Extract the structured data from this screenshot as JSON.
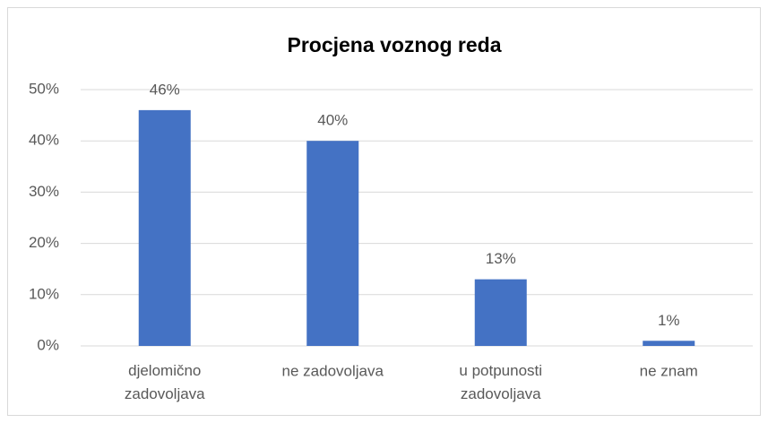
{
  "chart_data": {
    "type": "bar",
    "title": "Procjena voznog reda",
    "categories": [
      "djelomično zadovoljava",
      "ne zadovoljava",
      "u potpunosti zadovoljava",
      "ne znam"
    ],
    "values": [
      46,
      40,
      13,
      1
    ],
    "value_labels": [
      "46%",
      "40%",
      "13%",
      "1%"
    ],
    "color": "#4472c4",
    "ylim": [
      0,
      50
    ],
    "yticks": [
      {
        "value": 0,
        "label": "0%"
      },
      {
        "value": 10,
        "label": "10%"
      },
      {
        "value": 20,
        "label": "20%"
      },
      {
        "value": 30,
        "label": "30%"
      },
      {
        "value": 40,
        "label": "40%"
      },
      {
        "value": 50,
        "label": "50%"
      }
    ],
    "grid": true
  }
}
